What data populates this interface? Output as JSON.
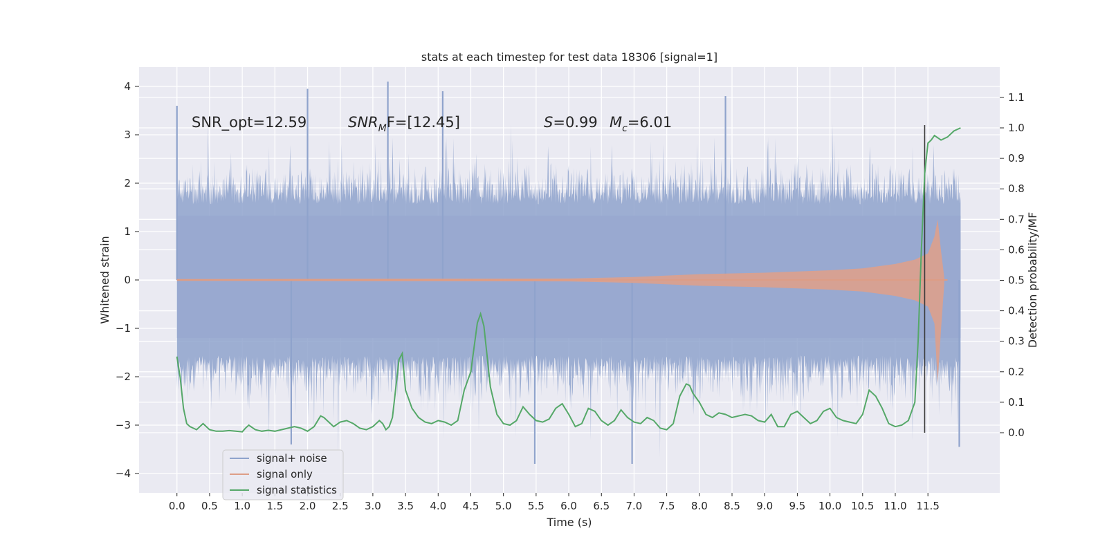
{
  "chart_data": {
    "type": "line",
    "title": "stats at each timestep for test data 18306 [signal=1]",
    "xlabel": "Time (s)",
    "ylabel": "Whitened strain",
    "y2label": "Detection probability/MF",
    "xlim": [
      -0.58,
      12.6
    ],
    "ylim": [
      -4.4,
      4.4
    ],
    "y2lim": [
      -0.0,
      1.0
    ],
    "x_ticks": [
      0.0,
      0.5,
      1.0,
      1.5,
      2.0,
      2.5,
      3.0,
      3.5,
      4.0,
      4.5,
      5.0,
      5.5,
      6.0,
      6.5,
      7.0,
      7.5,
      8.0,
      8.5,
      9.0,
      9.5,
      10.0,
      10.5,
      11.0,
      11.5
    ],
    "x_tick_labels": [
      "0.0",
      "0.5",
      "1.0",
      "1.5",
      "2.0",
      "2.5",
      "3.0",
      "3.5",
      "4.0",
      "4.5",
      "5.0",
      "5.5",
      "6.0",
      "6.5",
      "7.0",
      "7.5",
      "8.0",
      "8.5",
      "9.0",
      "9.5",
      "10.0",
      "10.5",
      "11.0",
      "11.5"
    ],
    "y_ticks": [
      -4,
      -3,
      -2,
      -1,
      0,
      1,
      2,
      3,
      4
    ],
    "y_tick_labels": [
      "−4",
      "−3",
      "−2",
      "−1",
      "0",
      "1",
      "2",
      "3",
      "4"
    ],
    "y2_ticks": [
      0.0,
      0.1,
      0.2,
      0.3,
      0.4,
      0.5,
      0.6,
      0.7,
      0.8,
      0.9,
      1.0,
      1.1
    ],
    "y2_tick_labels": [
      "0.0",
      "0.1",
      "0.2",
      "0.3",
      "0.4",
      "0.5",
      "0.6",
      "0.7",
      "0.8",
      "0.9",
      "1.0",
      "1.1"
    ],
    "grid": true,
    "legend_position": "lower-left",
    "annotations": {
      "snr_opt": "SNR_opt=12.59",
      "snr_mf_sym": "SNR",
      "snr_mf_sub": "M",
      "snr_mf_rest": "F=[12.45]",
      "s_sym": "S",
      "s_rest": "=0.99",
      "mc_sym": "M",
      "mc_sub": "c",
      "mc_rest": "=6.01"
    },
    "noise_envelope": {
      "t_start": 0.0,
      "t_end": 12.0,
      "typical_amplitude": 2.0,
      "peak_max": 4.1,
      "peak_min": -3.8
    },
    "detection_time": 11.45,
    "series": [
      {
        "name": "signal+ noise",
        "color": "#8fa3cc",
        "axis": "left"
      },
      {
        "name": "signal only",
        "color": "#dd9d86",
        "axis": "left",
        "envelope": {
          "t": [
            0.0,
            6.0,
            7.0,
            8.0,
            9.0,
            10.0,
            10.5,
            11.0,
            11.3,
            11.5,
            11.6,
            11.65,
            11.7,
            11.75
          ],
          "amplitude": [
            0.02,
            0.03,
            0.06,
            0.12,
            0.15,
            0.2,
            0.24,
            0.33,
            0.42,
            0.55,
            0.9,
            1.25,
            0.6,
            0.05
          ]
        }
      },
      {
        "name": "signal statistics",
        "color": "#55a868",
        "axis": "right",
        "x": [
          0.0,
          0.05,
          0.1,
          0.15,
          0.2,
          0.3,
          0.35,
          0.4,
          0.5,
          0.6,
          0.7,
          0.8,
          0.9,
          1.0,
          1.05,
          1.1,
          1.2,
          1.3,
          1.4,
          1.5,
          1.6,
          1.7,
          1.8,
          1.9,
          2.0,
          2.1,
          2.2,
          2.25,
          2.3,
          2.4,
          2.5,
          2.6,
          2.7,
          2.8,
          2.9,
          3.0,
          3.1,
          3.15,
          3.2,
          3.25,
          3.3,
          3.4,
          3.45,
          3.5,
          3.6,
          3.7,
          3.8,
          3.9,
          4.0,
          4.1,
          4.2,
          4.3,
          4.4,
          4.5,
          4.6,
          4.65,
          4.7,
          4.8,
          4.9,
          5.0,
          5.1,
          5.2,
          5.3,
          5.4,
          5.5,
          5.6,
          5.7,
          5.8,
          5.9,
          6.0,
          6.1,
          6.2,
          6.3,
          6.4,
          6.5,
          6.6,
          6.7,
          6.8,
          6.9,
          7.0,
          7.1,
          7.2,
          7.3,
          7.4,
          7.5,
          7.6,
          7.7,
          7.8,
          7.85,
          7.9,
          8.0,
          8.1,
          8.2,
          8.3,
          8.4,
          8.5,
          8.6,
          8.7,
          8.8,
          8.9,
          9.0,
          9.1,
          9.2,
          9.3,
          9.4,
          9.5,
          9.6,
          9.7,
          9.8,
          9.9,
          10.0,
          10.1,
          10.2,
          10.3,
          10.4,
          10.5,
          10.6,
          10.7,
          10.8,
          10.9,
          11.0,
          11.1,
          11.2,
          11.3,
          11.35,
          11.4,
          11.45,
          11.5,
          11.55,
          11.6,
          11.7,
          11.8,
          11.9,
          12.0
        ],
        "y": [
          0.25,
          0.18,
          0.08,
          0.03,
          0.02,
          0.01,
          0.02,
          0.03,
          0.01,
          0.005,
          0.005,
          0.007,
          0.005,
          0.003,
          0.015,
          0.025,
          0.01,
          0.005,
          0.008,
          0.005,
          0.01,
          0.015,
          0.02,
          0.015,
          0.005,
          0.02,
          0.055,
          0.05,
          0.04,
          0.02,
          0.035,
          0.04,
          0.03,
          0.015,
          0.01,
          0.02,
          0.04,
          0.03,
          0.01,
          0.02,
          0.05,
          0.24,
          0.26,
          0.14,
          0.08,
          0.05,
          0.035,
          0.03,
          0.04,
          0.035,
          0.025,
          0.04,
          0.14,
          0.2,
          0.36,
          0.39,
          0.35,
          0.15,
          0.06,
          0.03,
          0.025,
          0.04,
          0.085,
          0.06,
          0.04,
          0.035,
          0.045,
          0.08,
          0.095,
          0.06,
          0.02,
          0.03,
          0.08,
          0.07,
          0.04,
          0.025,
          0.04,
          0.075,
          0.05,
          0.035,
          0.03,
          0.05,
          0.04,
          0.015,
          0.01,
          0.03,
          0.12,
          0.16,
          0.155,
          0.13,
          0.1,
          0.06,
          0.05,
          0.065,
          0.06,
          0.05,
          0.055,
          0.06,
          0.055,
          0.04,
          0.035,
          0.06,
          0.02,
          0.02,
          0.06,
          0.07,
          0.05,
          0.03,
          0.04,
          0.07,
          0.08,
          0.05,
          0.04,
          0.035,
          0.03,
          0.06,
          0.14,
          0.12,
          0.08,
          0.03,
          0.02,
          0.025,
          0.04,
          0.1,
          0.3,
          0.6,
          0.85,
          0.95,
          0.96,
          0.975,
          0.96,
          0.97,
          0.99,
          1.0
        ]
      }
    ]
  }
}
